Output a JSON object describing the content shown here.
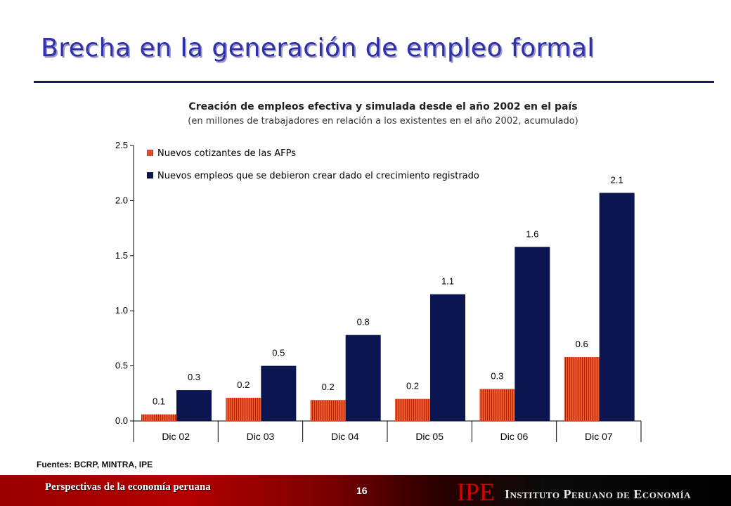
{
  "slide": {
    "title": "Brecha en la generación de empleo formal",
    "source": "Fuentes: BCRP, MINTRA, IPE"
  },
  "footer": {
    "left_text": "Perspectivas de la economía peruana",
    "page_number": "16",
    "logo_text": "IPE",
    "org_name": "Instituto Peruano de Economía"
  },
  "colors": {
    "title": "#3030a8",
    "series_afp": "#e8431e",
    "series_needed": "#0b1550",
    "footer_red": "#b50000"
  },
  "chart_data": {
    "type": "bar",
    "title": "Creación de empleos efectiva y simulada desde el año 2002 en el país",
    "subtitle": "(en millones de trabajadores en relación a los existentes en el año 2002, acumulado)",
    "categories": [
      "Dic 02",
      "Dic 03",
      "Dic 04",
      "Dic 05",
      "Dic 06",
      "Dic 07"
    ],
    "series": [
      {
        "name": "Nuevos cotizantes de las AFPs",
        "values": [
          0.06,
          0.21,
          0.19,
          0.2,
          0.29,
          0.58
        ],
        "labels": [
          "0.1",
          "0.2",
          "0.2",
          "0.2",
          "0.3",
          "0.6"
        ]
      },
      {
        "name": "Nuevos empleos que se debieron crear dado el crecimiento registrado",
        "values": [
          0.28,
          0.5,
          0.78,
          1.15,
          1.58,
          2.07
        ],
        "labels": [
          "0.3",
          "0.5",
          "0.8",
          "1.1",
          "1.6",
          "2.1"
        ]
      }
    ],
    "ylim": [
      0,
      2.5
    ],
    "yticks": [
      "0.0",
      "0.5",
      "1.0",
      "1.5",
      "2.0",
      "2.5"
    ],
    "ytick_values": [
      0,
      0.5,
      1.0,
      1.5,
      2.0,
      2.5
    ],
    "legend_position": "top-left",
    "grid": false
  }
}
